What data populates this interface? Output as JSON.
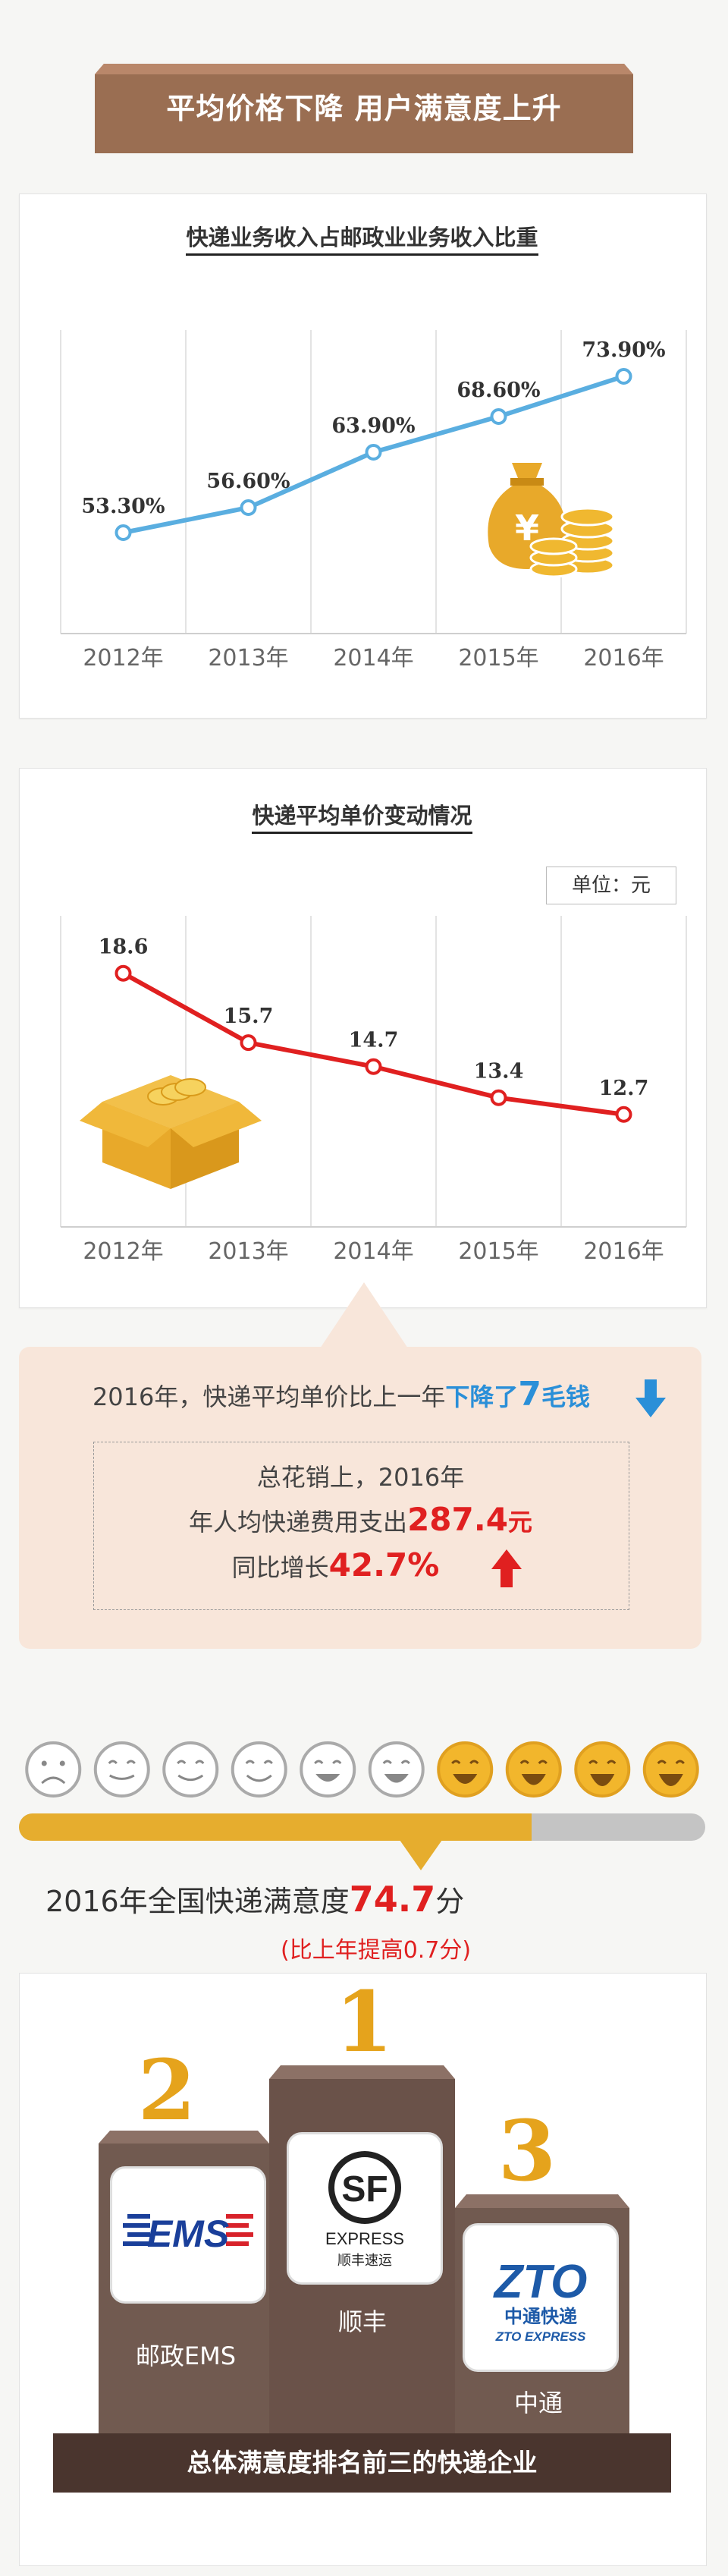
{
  "header": {
    "title": "平均价格下降 用户满意度上升"
  },
  "chart_data": [
    {
      "type": "line",
      "title": "快递业务收入占邮政业业务收入比重",
      "categories": [
        "2012年",
        "2013年",
        "2014年",
        "2015年",
        "2016年"
      ],
      "values": [
        53.3,
        56.6,
        63.9,
        68.6,
        73.9
      ],
      "value_labels": [
        "53.30%",
        "56.60%",
        "63.90%",
        "68.60%",
        "73.90%"
      ],
      "ylim": [
        40,
        80
      ],
      "color": "#5aaee0",
      "icon": "money-bag-icon"
    },
    {
      "type": "line",
      "title": "快递平均单价变动情况",
      "unit_label": "单位：元",
      "categories": [
        "2012年",
        "2013年",
        "2014年",
        "2015年",
        "2016年"
      ],
      "values": [
        18.6,
        15.7,
        14.7,
        13.4,
        12.7
      ],
      "value_labels": [
        "18.6",
        "15.7",
        "14.7",
        "13.4",
        "12.7"
      ],
      "ylim": [
        8,
        21
      ],
      "color": "#e02020",
      "icon": "box-of-coins-icon"
    }
  ],
  "info": {
    "line1_pre": "2016年，快递平均单价比上一年",
    "line1_hl": "下降了",
    "line1_num": "7",
    "line1_post": "毛钱",
    "inner_line1": "总花销上，2016年",
    "inner_line2_pre": "年人均快递费用支出",
    "inner_line2_num": "287.4",
    "inner_line2_post": "元",
    "inner_line3_pre": "同比增长",
    "inner_line3_num": "42.7%"
  },
  "satisfaction": {
    "score_pre": "2016年全国快递满意度",
    "score": "74.7",
    "score_post": "分",
    "sub": "(比上年提高0.7分)",
    "bar_fill": 0.747,
    "faces": 10
  },
  "podium": {
    "caption": "总体满意度排名前三的快递企业",
    "first": {
      "rank": "1",
      "name": "顺丰",
      "logo_text": "EXPRESS",
      "logo_sub": "顺丰速运"
    },
    "second": {
      "rank": "2",
      "name": "邮政EMS",
      "logo_text": "EMS"
    },
    "third": {
      "rank": "3",
      "name": "中通",
      "logo_text": "ZTO",
      "logo_sub1": "中通快递",
      "logo_sub2": "ZTO EXPRESS"
    }
  }
}
